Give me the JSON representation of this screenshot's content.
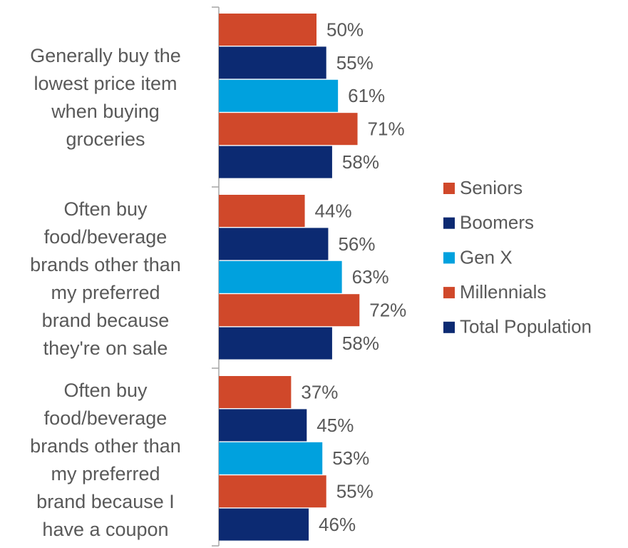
{
  "chart_data": {
    "type": "bar",
    "orientation": "horizontal",
    "categories": [
      "Generally buy the\nlowest price item\nwhen buying\ngroceries",
      "Often buy\nfood/beverage\nbrands other than\nmy preferred\nbrand because\nthey're on sale",
      "Often buy\nfood/beverage\nbrands other than\nmy preferred\nbrand because I\nhave a coupon"
    ],
    "series": [
      {
        "name": "Seniors",
        "color": "#d0482a",
        "values": [
          50,
          44,
          37
        ],
        "value_labels": [
          "50%",
          "44%",
          "37%"
        ]
      },
      {
        "name": "Boomers",
        "color": "#0c2a72",
        "values": [
          55,
          56,
          45
        ],
        "value_labels": [
          "55%",
          "56%",
          "45%"
        ]
      },
      {
        "name": "Gen X",
        "color": "#00a1de",
        "values": [
          61,
          63,
          53
        ],
        "value_labels": [
          "61%",
          "63%",
          "53%"
        ]
      },
      {
        "name": "Millennials",
        "color": "#d0482a",
        "values": [
          71,
          72,
          55
        ],
        "value_labels": [
          "71%",
          "72%",
          "55%"
        ]
      },
      {
        "name": "Total Population",
        "color": "#0c2a72",
        "values": [
          58,
          58,
          46
        ],
        "value_labels": [
          "58%",
          "58%",
          "46%"
        ]
      }
    ],
    "legend": "right"
  }
}
